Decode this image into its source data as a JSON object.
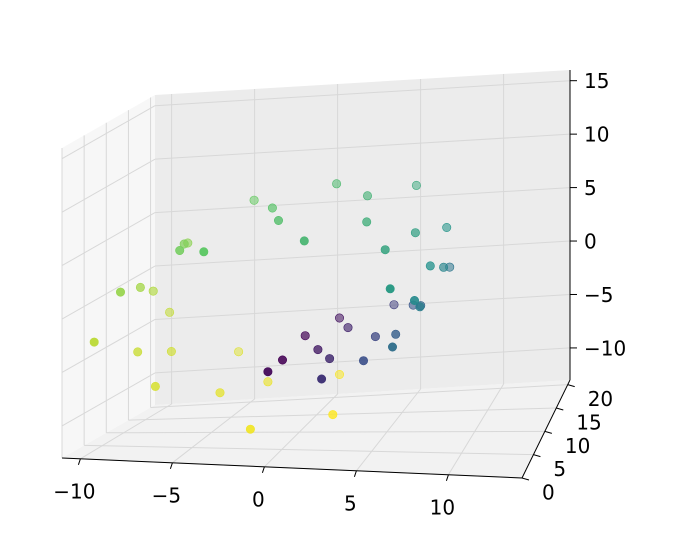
{
  "chart_data": {
    "type": "scatter",
    "projection": "3d",
    "title": "",
    "xlabel": "",
    "ylabel": "",
    "zlabel": "",
    "grid": true,
    "legend": "none",
    "colormap": "viridis",
    "colormap_stops": [
      "#440154",
      "#3b528b",
      "#21918c",
      "#5ec962",
      "#fde725"
    ],
    "pane_color": "#f2f2f2",
    "axes": {
      "x": {
        "range": [
          -11,
          14
        ],
        "ticks": [
          -10,
          -5,
          0,
          5,
          10
        ],
        "tick_labels": [
          "−10",
          "−5",
          "0",
          "5",
          "10"
        ]
      },
      "y": {
        "range": [
          0,
          21
        ],
        "ticks": [
          0,
          5,
          10,
          15,
          20
        ],
        "tick_labels": [
          "0",
          "5",
          "10",
          "15",
          "20"
        ]
      },
      "z": {
        "range": [
          -13,
          16
        ],
        "ticks": [
          -10,
          -5,
          0,
          5,
          10,
          15
        ],
        "tick_labels": [
          "−10",
          "−5",
          "0",
          "5",
          "10",
          "15"
        ]
      }
    },
    "series": [
      {
        "description": "Swiss roll point cloud, t from 4.71 to 14.14; x = t·cos t, z = t·sin t, y uniform in [0, 21]",
        "t_range": [
          4.71,
          14.14
        ],
        "y_range": [
          0,
          21
        ],
        "points": [
          [
            -0.0,
            5.2,
            -4.7,
            0.0
          ],
          [
            -0.18,
            12.6,
            -4.82,
            0.01
          ],
          [
            -0.27,
            2.4,
            -4.9,
            0.02
          ],
          [
            0.71,
            18.1,
            -5.0,
            0.05
          ],
          [
            1.2,
            9.3,
            -5.05,
            0.07
          ],
          [
            1.75,
            15.4,
            -5.06,
            0.1
          ],
          [
            2.35,
            6.7,
            -5.0,
            0.12
          ],
          [
            2.95,
            0.9,
            -4.88,
            0.15
          ],
          [
            3.55,
            20.2,
            -4.7,
            0.18
          ],
          [
            4.16,
            11.0,
            -4.44,
            0.21
          ],
          [
            4.75,
            3.8,
            -4.1,
            0.24
          ],
          [
            5.3,
            16.9,
            -3.68,
            0.27
          ],
          [
            5.82,
            8.1,
            -3.17,
            0.3
          ],
          [
            6.3,
            13.7,
            -2.58,
            0.33
          ],
          [
            6.71,
            1.6,
            -1.9,
            0.36
          ],
          [
            7.05,
            19.3,
            -1.14,
            0.39
          ],
          [
            7.3,
            7.4,
            -0.32,
            0.42
          ],
          [
            7.45,
            14.8,
            0.54,
            0.45
          ],
          [
            7.48,
            4.4,
            1.43,
            0.47
          ],
          [
            7.39,
            10.5,
            2.32,
            0.5
          ],
          [
            7.16,
            17.6,
            3.2,
            0.52
          ],
          [
            6.79,
            0.3,
            4.05,
            0.54
          ],
          [
            6.27,
            12.1,
            4.84,
            0.56
          ],
          [
            5.6,
            5.9,
            5.55,
            0.58
          ],
          [
            4.8,
            20.7,
            6.17,
            0.6
          ],
          [
            3.86,
            9.9,
            6.68,
            0.62
          ],
          [
            2.8,
            15.9,
            7.05,
            0.64
          ],
          [
            1.64,
            2.9,
            7.28,
            0.66
          ],
          [
            0.4,
            18.8,
            7.35,
            0.68
          ],
          [
            -0.9,
            8.6,
            7.25,
            0.7
          ],
          [
            -2.22,
            13.3,
            6.97,
            0.72
          ],
          [
            -3.52,
            1.1,
            6.52,
            0.74
          ],
          [
            -4.77,
            19.9,
            5.89,
            0.76
          ],
          [
            -5.93,
            6.1,
            5.1,
            0.78
          ],
          [
            -6.98,
            11.8,
            4.15,
            0.8
          ],
          [
            -7.87,
            16.4,
            3.06,
            0.82
          ],
          [
            -8.58,
            3.3,
            1.86,
            0.84
          ],
          [
            -9.08,
            10.1,
            0.56,
            0.86
          ],
          [
            -9.35,
            14.2,
            -0.8,
            0.88
          ],
          [
            -9.39,
            0.6,
            -2.19,
            0.9
          ],
          [
            -9.17,
            17.3,
            -3.57,
            0.91
          ],
          [
            -8.7,
            7.9,
            -4.91,
            0.92
          ],
          [
            -7.98,
            12.9,
            -6.17,
            0.93
          ],
          [
            -7.01,
            4.9,
            -7.32,
            0.94
          ],
          [
            -5.82,
            20.4,
            -8.33,
            0.95
          ],
          [
            -4.43,
            9.6,
            -9.17,
            0.96
          ],
          [
            -2.87,
            15.1,
            -9.81,
            0.97
          ],
          [
            -1.17,
            2.1,
            -10.23,
            0.98
          ],
          [
            0.63,
            18.5,
            -10.41,
            0.99
          ],
          [
            2.47,
            7.0,
            -10.34,
            1.0
          ]
        ]
      }
    ]
  }
}
